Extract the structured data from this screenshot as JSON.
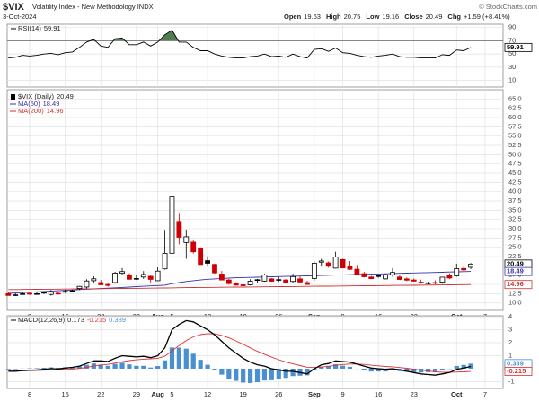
{
  "header": {
    "symbol": "$VIX",
    "name": "Volatility Index - New Methodology INDX",
    "date": "3-Oct-2024",
    "copyright": "© StockCharts.com",
    "quote": [
      {
        "label": "Open",
        "value": "19.63"
      },
      {
        "label": "High",
        "value": "20.75"
      },
      {
        "label": "Low",
        "value": "19.16"
      },
      {
        "label": "Close",
        "value": "20.49"
      },
      {
        "label": "Chg",
        "value": "+1.59 (+8.41%)"
      }
    ]
  },
  "chart_data": [
    {
      "type": "rsi",
      "name": "RSI(14)",
      "color": "#000000",
      "fill_above": 70,
      "fill_color": "#4f7f4f",
      "values": [
        44,
        45,
        48,
        47,
        48,
        50,
        51,
        49,
        52,
        53,
        60,
        68,
        72,
        62,
        60,
        73,
        74,
        64,
        64,
        68,
        62,
        68,
        79,
        86,
        68,
        68,
        60,
        55,
        55,
        50,
        47,
        45,
        44,
        44,
        46,
        47,
        50,
        46,
        47,
        45,
        50,
        46,
        44,
        57,
        58,
        54,
        59,
        52,
        51,
        48,
        46,
        45,
        47,
        48,
        50,
        46,
        45,
        45,
        44,
        44,
        44,
        49,
        48,
        56,
        55,
        59.91,
        null,
        null
      ],
      "ylim": [
        0,
        95
      ],
      "yticks": [
        10,
        30,
        50,
        70,
        90
      ],
      "grid": true
    },
    {
      "type": "candlestick",
      "name": "$VIX (Daily)",
      "colors": {
        "up": "#000000",
        "down": "#cc0000"
      },
      "categories": [
        null,
        null,
        null,
        "8",
        null,
        null,
        null,
        null,
        "15",
        null,
        null,
        null,
        null,
        "22",
        null,
        null,
        null,
        null,
        "29",
        null,
        null,
        "Aug",
        null,
        "5",
        null,
        null,
        null,
        null,
        "12",
        null,
        null,
        null,
        null,
        "19",
        null,
        null,
        null,
        null,
        "26",
        null,
        null,
        null,
        null,
        "Sep",
        null,
        null,
        null,
        "9",
        null,
        null,
        null,
        null,
        "16",
        null,
        null,
        null,
        null,
        "23",
        null,
        null,
        null,
        null,
        null,
        "Oct",
        null,
        null,
        null,
        "7"
      ],
      "open": [
        12.5,
        12.2,
        12.3,
        12.6,
        12.4,
        12.8,
        12.3,
        12.6,
        12.9,
        13.3,
        13.9,
        14.3,
        16.0,
        15.5,
        15.0,
        15.5,
        18.0,
        17.6,
        16.5,
        17.0,
        17.2,
        16.0,
        19.2,
        23.4,
        32.0,
        26.3,
        26.4,
        24.8,
        21.4,
        20.4,
        17.8,
        16.2,
        15.3,
        14.9,
        14.9,
        16.2,
        15.9,
        16.5,
        16.3,
        16.2,
        15.8,
        16.5,
        15.5,
        16.6,
        21.0,
        20.8,
        19.4,
        21.7,
        19.9,
        19.1,
        17.9,
        17.0,
        17.4,
        16.5,
        17.6,
        17.0,
        16.5,
        16.2,
        15.6,
        15.4,
        15.5,
        15.6,
        17.4,
        17.3,
        19.3,
        19.63,
        null,
        null
      ],
      "high": [
        12.9,
        12.6,
        12.9,
        12.9,
        12.9,
        13.0,
        13.5,
        13.1,
        13.6,
        13.6,
        14.6,
        16.4,
        17.2,
        16.2,
        15.4,
        18.4,
        19.4,
        18.0,
        17.6,
        18.6,
        17.4,
        19.6,
        29.7,
        65.73,
        34.3,
        29.8,
        26.9,
        25.0,
        22.6,
        20.6,
        18.6,
        16.5,
        15.6,
        15.6,
        16.4,
        16.5,
        17.9,
        16.7,
        17.0,
        16.4,
        17.9,
        17.2,
        16.0,
        21.2,
        21.9,
        21.2,
        23.8,
        21.9,
        21.3,
        20.3,
        18.4,
        17.3,
        17.6,
        17.8,
        19.4,
        17.4,
        16.9,
        16.6,
        16.3,
        15.7,
        16.1,
        17.0,
        18.0,
        20.6,
        20.1,
        20.75,
        null,
        null
      ],
      "low": [
        12.0,
        11.9,
        12.2,
        12.2,
        12.3,
        12.4,
        12.0,
        12.3,
        12.7,
        12.9,
        13.5,
        13.9,
        15.4,
        14.8,
        14.4,
        15.2,
        17.6,
        16.3,
        16.2,
        16.5,
        15.4,
        15.9,
        19.0,
        23.0,
        25.8,
        21.9,
        23.3,
        20.3,
        19.9,
        17.9,
        16.1,
        14.9,
        14.7,
        14.3,
        14.7,
        15.4,
        15.7,
        15.7,
        15.7,
        15.3,
        15.4,
        15.5,
        14.9,
        16.0,
        19.8,
        19.5,
        19.3,
        19.4,
        18.9,
        17.5,
        16.9,
        16.4,
        16.8,
        16.3,
        17.1,
        16.2,
        15.9,
        15.8,
        15.2,
        15.0,
        15.0,
        15.2,
        16.4,
        17.1,
        18.6,
        19.16,
        null,
        null
      ],
      "close": [
        12.03,
        12.09,
        12.48,
        12.37,
        12.51,
        12.85,
        12.91,
        12.46,
        13.12,
        13.19,
        14.48,
        15.93,
        16.52,
        14.91,
        14.72,
        18.04,
        18.46,
        16.39,
        16.6,
        17.69,
        16.36,
        18.59,
        23.39,
        38.57,
        27.71,
        27.85,
        23.79,
        20.37,
        20.71,
        18.12,
        16.19,
        15.23,
        14.8,
        14.65,
        15.88,
        16.27,
        17.55,
        15.86,
        16.15,
        15.43,
        17.11,
        15.65,
        15.0,
        20.72,
        21.32,
        19.9,
        22.38,
        19.45,
        19.08,
        17.69,
        17.07,
        16.56,
        17.14,
        17.61,
        18.23,
        16.33,
        16.15,
        15.89,
        15.39,
        15.41,
        15.37,
        16.96,
        16.73,
        19.26,
        18.9,
        20.49,
        null,
        null
      ],
      "series": [
        {
          "name": "MA(50)",
          "color": "#3333aa",
          "values": [
            12.6,
            12.7,
            12.8,
            12.9,
            13.0,
            13.1,
            13.2,
            13.3,
            13.4,
            13.5,
            13.6,
            13.7,
            13.8,
            13.9,
            14.0,
            14.1,
            14.2,
            14.3,
            14.4,
            14.5,
            14.6,
            14.7,
            14.8,
            15.2,
            15.5,
            15.8,
            16.0,
            16.2,
            16.4,
            16.5,
            16.6,
            16.7,
            16.8,
            16.85,
            16.9,
            16.96,
            17.01,
            17.06,
            17.11,
            17.16,
            17.21,
            17.26,
            17.31,
            17.37,
            17.42,
            17.47,
            17.52,
            17.57,
            17.62,
            17.67,
            17.72,
            17.78,
            17.83,
            17.88,
            17.93,
            17.98,
            18.03,
            18.08,
            18.13,
            18.18,
            18.23,
            18.29,
            18.34,
            18.39,
            18.44,
            18.49,
            null,
            null
          ]
        },
        {
          "name": "MA(200)",
          "color": "#cc3333",
          "values": [
            13.6,
            13.62,
            13.64,
            13.66,
            13.68,
            13.7,
            13.72,
            13.74,
            13.76,
            13.78,
            13.8,
            13.82,
            13.84,
            13.86,
            13.88,
            13.9,
            13.92,
            13.94,
            13.96,
            13.98,
            14.0,
            14.02,
            14.04,
            14.08,
            14.11,
            14.14,
            14.16,
            14.18,
            14.2,
            14.22,
            14.24,
            14.26,
            14.28,
            14.3,
            14.32,
            14.34,
            14.36,
            14.38,
            14.4,
            14.42,
            14.44,
            14.46,
            14.48,
            14.5,
            14.52,
            14.54,
            14.56,
            14.58,
            14.6,
            14.62,
            14.64,
            14.66,
            14.68,
            14.7,
            14.72,
            14.74,
            14.76,
            14.78,
            14.8,
            14.82,
            14.84,
            14.86,
            14.89,
            14.91,
            14.94,
            14.96,
            null,
            null
          ]
        }
      ],
      "ylim": [
        8,
        67.5
      ],
      "yticks": [
        {
          "value": 10,
          "label": "10.0"
        },
        {
          "value": 12.5,
          "label": "12.5"
        },
        {
          "value": 15,
          "label": "15.0"
        },
        {
          "value": 17.5,
          "label": "17.5"
        },
        {
          "value": 20,
          "label": "20.0"
        },
        {
          "value": 22.5,
          "label": "22.5"
        },
        {
          "value": 25,
          "label": "25.0"
        },
        {
          "value": 27.5,
          "label": "27.5"
        },
        {
          "value": 30,
          "label": "30.0"
        },
        {
          "value": 32.5,
          "label": "32.5"
        },
        {
          "value": 35,
          "label": "35.0"
        },
        {
          "value": 37.5,
          "label": "37.5"
        },
        {
          "value": 40,
          "label": "40.0"
        },
        {
          "value": 42.5,
          "label": "42.5"
        },
        {
          "value": 45,
          "label": "45.0"
        },
        {
          "value": 47.5,
          "label": "47.5"
        },
        {
          "value": 50,
          "label": "50.0"
        },
        {
          "value": 52.5,
          "label": "52.5"
        },
        {
          "value": 55,
          "label": "55.0"
        },
        {
          "value": 57.5,
          "label": "57.5"
        },
        {
          "value": 60,
          "label": "60.0"
        },
        {
          "value": 62.5,
          "label": "62.5"
        },
        {
          "value": 65,
          "label": "65.0"
        }
      ],
      "grid": true
    },
    {
      "type": "macd",
      "name": "MACD(12,26,9)",
      "categories": [
        null,
        null,
        null,
        "8",
        null,
        null,
        null,
        null,
        "15",
        null,
        null,
        null,
        null,
        "22",
        null,
        null,
        null,
        null,
        "29",
        null,
        null,
        "Aug",
        null,
        "5",
        null,
        null,
        null,
        null,
        "12",
        null,
        null,
        null,
        null,
        "19",
        null,
        null,
        null,
        null,
        "26",
        null,
        null,
        null,
        null,
        "Sep",
        null,
        null,
        null,
        "9",
        null,
        null,
        null,
        null,
        "16",
        null,
        null,
        null,
        null,
        "23",
        null,
        null,
        null,
        null,
        null,
        "Oct",
        null,
        null,
        null,
        "7"
      ],
      "macd": {
        "color": "#000000",
        "values": [
          -0.2,
          -0.2,
          -0.15,
          -0.12,
          -0.1,
          -0.05,
          0.0,
          -0.02,
          0.05,
          0.1,
          0.2,
          0.4,
          0.6,
          0.6,
          0.55,
          0.8,
          1.0,
          0.95,
          0.9,
          0.95,
          0.85,
          1.0,
          1.6,
          3.0,
          3.4,
          3.7,
          3.6,
          3.3,
          3.0,
          2.6,
          2.1,
          1.6,
          1.2,
          0.8,
          0.5,
          0.3,
          0.2,
          0.0,
          -0.1,
          -0.2,
          -0.2,
          -0.3,
          -0.4,
          0.0,
          0.3,
          0.4,
          0.6,
          0.55,
          0.5,
          0.35,
          0.2,
          0.05,
          0.0,
          -0.05,
          0.0,
          -0.1,
          -0.2,
          -0.3,
          -0.4,
          -0.45,
          -0.5,
          -0.4,
          -0.3,
          -0.05,
          0.05,
          0.173,
          null,
          null
        ]
      },
      "signal": {
        "color": "#e03030",
        "values": [
          -0.15,
          -0.16,
          -0.16,
          -0.15,
          -0.14,
          -0.12,
          -0.1,
          -0.08,
          -0.06,
          -0.03,
          0.02,
          0.1,
          0.2,
          0.28,
          0.33,
          0.43,
          0.54,
          0.62,
          0.68,
          0.73,
          0.76,
          0.8,
          0.96,
          1.37,
          1.78,
          2.16,
          2.45,
          2.62,
          2.7,
          2.68,
          2.56,
          2.37,
          2.14,
          1.87,
          1.6,
          1.34,
          1.11,
          0.89,
          0.69,
          0.51,
          0.37,
          0.24,
          0.11,
          0.09,
          0.13,
          0.18,
          0.26,
          0.32,
          0.36,
          0.36,
          0.33,
          0.27,
          0.22,
          0.17,
          0.14,
          0.09,
          0.03,
          -0.04,
          -0.11,
          -0.18,
          -0.24,
          -0.27,
          -0.28,
          -0.26,
          -0.24,
          -0.215,
          null,
          null
        ]
      },
      "histogram": {
        "color": "#4a90d0",
        "values": [
          -0.05,
          -0.04,
          0.01,
          0.03,
          0.04,
          0.07,
          0.1,
          0.06,
          0.11,
          0.13,
          0.18,
          0.3,
          0.4,
          0.32,
          0.22,
          0.37,
          0.46,
          0.33,
          0.22,
          0.22,
          0.09,
          0.2,
          0.64,
          1.63,
          1.62,
          1.54,
          1.15,
          0.68,
          0.3,
          -0.08,
          -0.46,
          -0.77,
          -0.94,
          -1.07,
          -1.1,
          -1.04,
          -0.91,
          -0.89,
          -0.79,
          -0.71,
          -0.57,
          -0.54,
          -0.51,
          -0.09,
          0.17,
          0.22,
          0.34,
          0.23,
          0.14,
          -0.01,
          -0.13,
          -0.22,
          -0.22,
          -0.22,
          -0.14,
          -0.19,
          -0.23,
          -0.26,
          -0.29,
          -0.27,
          -0.26,
          -0.13,
          -0.02,
          0.21,
          0.29,
          0.389,
          null,
          null
        ]
      },
      "ylim": [
        -1.52,
        4.07
      ],
      "yticks": [
        -1,
        1,
        2,
        3,
        4
      ],
      "grid": true
    }
  ]
}
